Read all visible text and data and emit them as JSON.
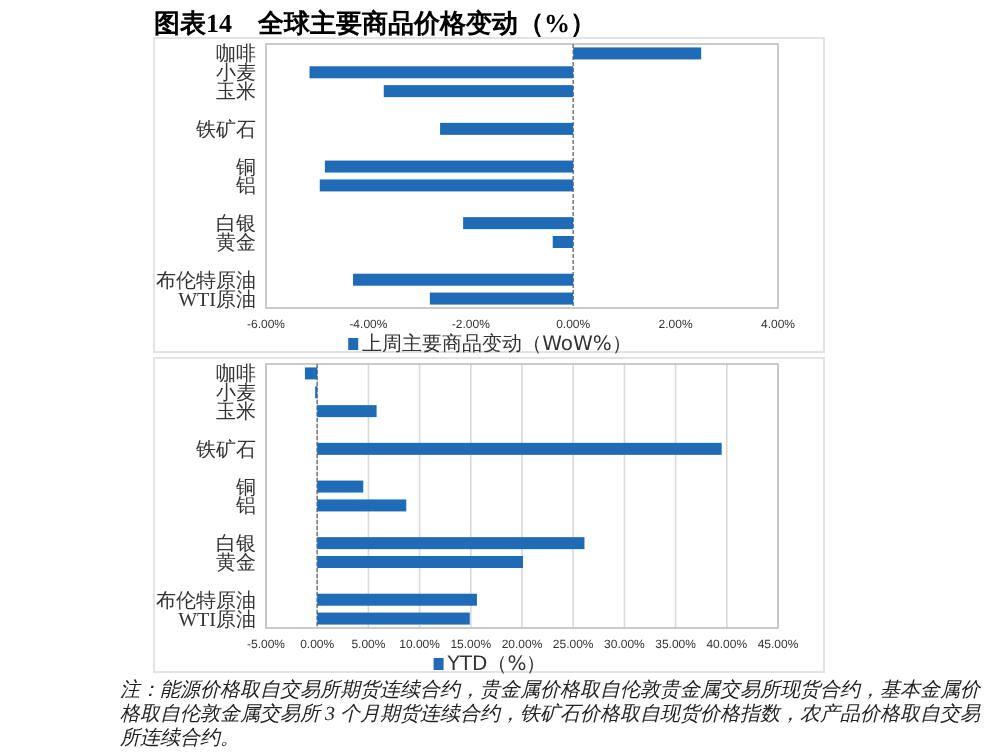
{
  "chart_data": [
    {
      "type": "bar",
      "title": "图表14　全球主要商品价格变动（%）",
      "orientation": "horizontal",
      "categories": [
        "咖啡",
        "小麦",
        "玉米",
        null,
        "铁矿石",
        null,
        "铜",
        "铝",
        null,
        "白银",
        "黄金",
        null,
        "布伦特原油",
        "WTI原油"
      ],
      "series": [
        {
          "name": "上周主要商品变动（WoW%）",
          "color": "#1f6bb5",
          "values": [
            2.5,
            -5.15,
            -3.7,
            null,
            -2.6,
            null,
            -4.85,
            -4.95,
            null,
            -2.15,
            -0.4,
            null,
            -4.3,
            -2.8
          ]
        }
      ],
      "xlim": [
        -6,
        4
      ],
      "xticks": [
        {
          "value": -6,
          "label": "-6.00%"
        },
        {
          "value": -4,
          "label": "-4.00%"
        },
        {
          "value": -2,
          "label": "-2.00%"
        },
        {
          "value": 0,
          "label": "0.00%"
        },
        {
          "value": 2,
          "label": "2.00%"
        },
        {
          "value": 4,
          "label": "4.00%"
        }
      ],
      "legend": "bottom",
      "ref_lines": [
        {
          "axis": "x",
          "value": 0,
          "color": "#808080",
          "line_style": "dashed"
        }
      ]
    },
    {
      "type": "bar",
      "orientation": "horizontal",
      "categories": [
        "咖啡",
        "小麦",
        "玉米",
        null,
        "铁矿石",
        null,
        "铜",
        "铝",
        null,
        "白银",
        "黄金",
        null,
        "布伦特原油",
        "WTI原油"
      ],
      "series": [
        {
          "name": "YTD（%）",
          "color": "#1f6bb5",
          "values": [
            -1.2,
            -0.2,
            5.8,
            null,
            39.5,
            null,
            4.5,
            8.7,
            null,
            26.1,
            20.1,
            null,
            15.6,
            14.9
          ]
        }
      ],
      "xlim": [
        -5,
        45
      ],
      "xticks": [
        {
          "value": -5,
          "label": "-5.00%"
        },
        {
          "value": 0,
          "label": "0.00%"
        },
        {
          "value": 5,
          "label": "5.00%"
        },
        {
          "value": 10,
          "label": "10.00%"
        },
        {
          "value": 15,
          "label": "15.00%"
        },
        {
          "value": 20,
          "label": "20.00%"
        },
        {
          "value": 25,
          "label": "25.00%"
        },
        {
          "value": 30,
          "label": "30.00%"
        },
        {
          "value": 35,
          "label": "35.00%"
        },
        {
          "value": 40,
          "label": "40.00%"
        },
        {
          "value": 45,
          "label": "45.00%"
        }
      ],
      "grid": "x",
      "legend": "bottom",
      "ref_lines": [
        {
          "axis": "x",
          "value": 0,
          "color": "#808080",
          "line_style": "dashed"
        }
      ],
      "annotations": [
        "注：能源价格取自交易所期货连续合约，贵金属价格取自伦敦贵金属交易所现货合约，基本金属价格取自伦敦金属交易所 3 个月期货连续合约，铁矿石价格取自现货价格指数，农产品价格取自交易所连续合约。"
      ]
    }
  ]
}
